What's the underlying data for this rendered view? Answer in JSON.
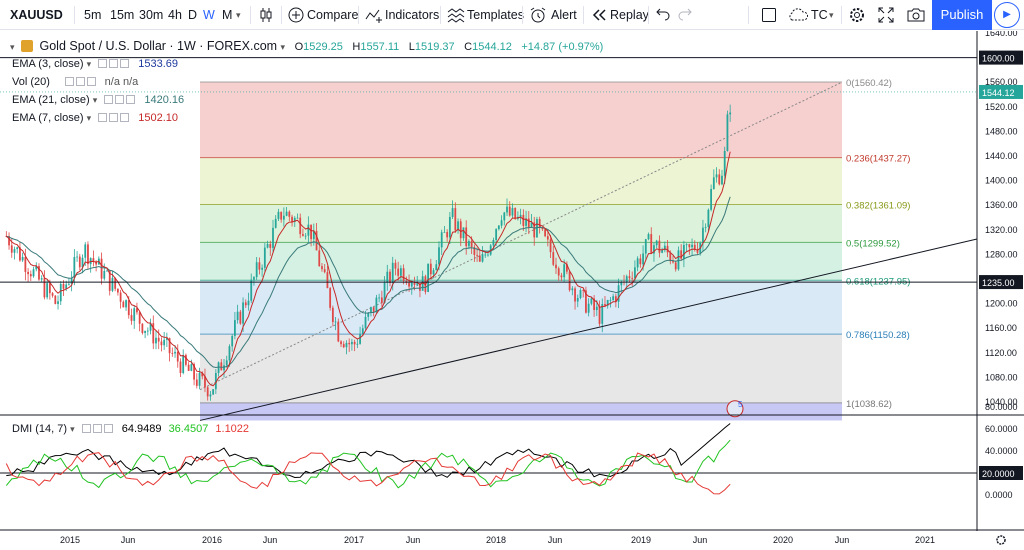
{
  "toolbar": {
    "symbol": "XAUUSD",
    "intervals": [
      "5m",
      "15m",
      "30m",
      "4h",
      "D",
      "W",
      "M"
    ],
    "active_interval": "W",
    "compare_label": "Compare",
    "indicators_label": "Indicators",
    "templates_label": "Templates",
    "alert_label": "Alert",
    "replay_label": "Replay",
    "tc_label": "TC",
    "publish_label": "Publish",
    "accent_color": "#2962ff"
  },
  "header": {
    "title": "Gold Spot / U.S. Dollar · 1W · FOREX.com",
    "open_label": "O",
    "open": "1529.25",
    "high_label": "H",
    "high": "1557.11",
    "low_label": "L",
    "low": "1519.37",
    "close_label": "C",
    "close": "1544.12",
    "change": "+14.87 (+0.97%)"
  },
  "legend": [
    {
      "name": "EMA (3, close)",
      "value": "1533.69",
      "color": "#1e3a9e"
    },
    {
      "name": "Vol (20)",
      "value": "n/a  n/a",
      "color": "#555555"
    },
    {
      "name": "EMA (21, close)",
      "value": "1420.16",
      "color": "#3a7a7a"
    },
    {
      "name": "EMA (7, close)",
      "value": "1502.10",
      "color": "#c62828"
    }
  ],
  "dmi": {
    "name": "DMI (14, 7)",
    "adx": "64.9489",
    "plus_di": "36.4507",
    "minus_di": "1.1022",
    "adx_color": "#000000",
    "plus_color": "#22c322",
    "minus_color": "#e53935"
  },
  "price_axis": {
    "ticks": [
      "1640.00",
      "1600.00",
      "1560.00",
      "1520.00",
      "1480.00",
      "1440.00",
      "1400.00",
      "1360.00",
      "1320.00",
      "1280.00",
      "1240.00",
      "1200.00",
      "1160.00",
      "1120.00",
      "1080.00",
      "1040.00"
    ],
    "last_price": "1544.12",
    "line_1600": "1600.00",
    "line_1235": "1235.00"
  },
  "dmi_axis": {
    "ticks": [
      "80.0000",
      "60.0000",
      "40.0000",
      "20.0000",
      "0.0000"
    ],
    "line_20": "20.0000"
  },
  "time_axis": [
    "2015",
    "Jun",
    "2016",
    "Jun",
    "2017",
    "Jun",
    "2018",
    "Jun",
    "2019",
    "Jun",
    "2020",
    "Jun",
    "2021"
  ],
  "fib_levels": [
    {
      "label": "0(1560.42)",
      "price": 1560.42,
      "color": "#888888"
    },
    {
      "label": "0.236(1437.27)",
      "price": 1437.27,
      "color": "#c0392b"
    },
    {
      "label": "0.382(1361.09)",
      "price": 1361.09,
      "color": "#8a9a1a"
    },
    {
      "label": "0.5(1299.52)",
      "price": 1299.52,
      "color": "#2e9a3e"
    },
    {
      "label": "0.618(1237.95)",
      "price": 1237.95,
      "color": "#1e9a7a"
    },
    {
      "label": "0.786(1150.28)",
      "price": 1150.28,
      "color": "#2b7fb8"
    },
    {
      "label": "1(1038.62)",
      "price": 1038.62,
      "color": "#777777"
    }
  ],
  "event_badge": "5"
}
